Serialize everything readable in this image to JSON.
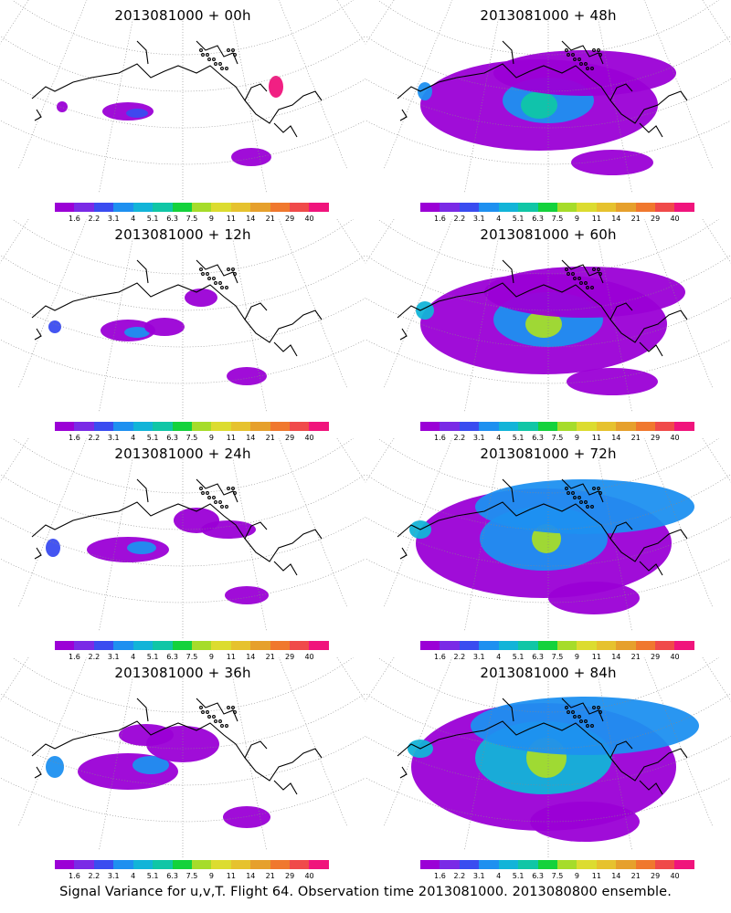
{
  "colorbar": {
    "colors": [
      "#9b00d6",
      "#7a2ae6",
      "#3a4cf0",
      "#1e90f0",
      "#12b4d8",
      "#10c6a6",
      "#14d23c",
      "#a6dc2a",
      "#dcdc30",
      "#e6c22e",
      "#e6a02c",
      "#f0782e",
      "#f04a4a",
      "#f0147c"
    ],
    "labels": [
      "1.6",
      "2.2",
      "3.1",
      "4",
      "5.1",
      "6.3",
      "7.5",
      "9",
      "11",
      "14",
      "21",
      "29",
      "40"
    ]
  },
  "panels": [
    {
      "title": "2013081000 + 00h",
      "level": 0
    },
    {
      "title": "2013081000 + 48h",
      "level": 4
    },
    {
      "title": "2013081000 + 12h",
      "level": 1
    },
    {
      "title": "2013081000 + 60h",
      "level": 5
    },
    {
      "title": "2013081000 + 24h",
      "level": 2
    },
    {
      "title": "2013081000 + 72h",
      "level": 6
    },
    {
      "title": "2013081000 + 36h",
      "level": 3
    },
    {
      "title": "2013081000 + 84h",
      "level": 7
    }
  ],
  "caption": "Signal Variance for u,v,T. Flight 64. Observation time 2013081000. 2013080800 ensemble."
}
